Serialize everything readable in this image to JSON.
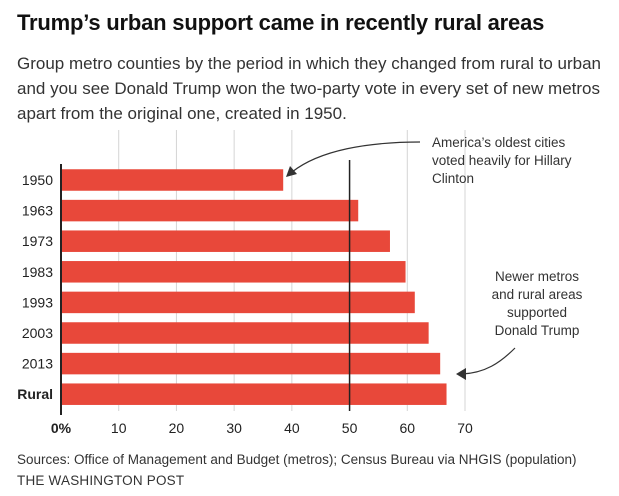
{
  "header": {
    "title": "Trump’s urban support came in recently rural areas",
    "subtitle": "Group metro counties by the period in which they changed from rural to urban and you see Donald Trump won the two-party vote in every set of new metros apart from the original one, created in 1950."
  },
  "chart_data": {
    "type": "bar",
    "orientation": "horizontal",
    "categories": [
      "1950",
      "1963",
      "1973",
      "1983",
      "1993",
      "2003",
      "2013",
      "Rural"
    ],
    "values": [
      38.5,
      51.5,
      57,
      59.7,
      61.3,
      63.7,
      65.7,
      66.8
    ],
    "xlim": [
      0,
      70
    ],
    "xticks": [
      "0%",
      "10",
      "20",
      "30",
      "40",
      "50",
      "60",
      "70"
    ],
    "reference_line": 50,
    "bar_color": "#e8483a",
    "grid": true,
    "annotations": [
      {
        "target": "1950",
        "lines": [
          "America’s oldest cities",
          "voted heavily for Hillary",
          "Clinton"
        ]
      },
      {
        "target": "2013",
        "lines": [
          "Newer metros",
          "and rural areas",
          "supported",
          "Donald Trump"
        ]
      }
    ]
  },
  "footer": {
    "sources": "Sources: Office of Management and Budget (metros); Census Bureau via NHGIS (population)",
    "credit": "THE WASHINGTON POST"
  }
}
